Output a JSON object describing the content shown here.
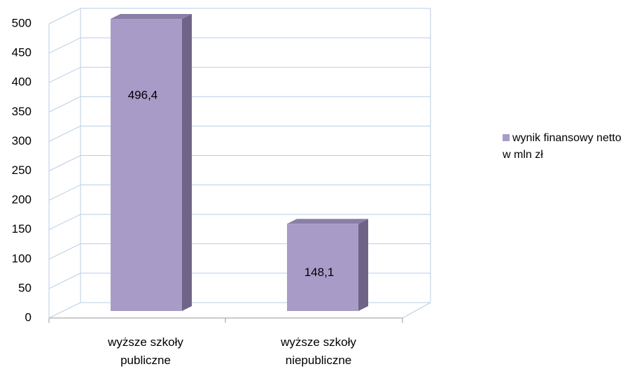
{
  "chart_data": {
    "type": "bar3d",
    "categories": [
      "wyższe szkoły publiczne",
      "wyższe szkoły niepubliczne"
    ],
    "series": [
      {
        "name": "wynik finansowy netto w mln zł",
        "color": "#a99bc8",
        "values": [
          496.4,
          148.1
        ],
        "value_labels": [
          "496,4",
          "148,1"
        ]
      }
    ],
    "ylim": [
      0,
      500
    ],
    "yticks": [
      0,
      50,
      100,
      150,
      200,
      250,
      300,
      350,
      400,
      450,
      500
    ],
    "grid": true,
    "legend": "right"
  }
}
